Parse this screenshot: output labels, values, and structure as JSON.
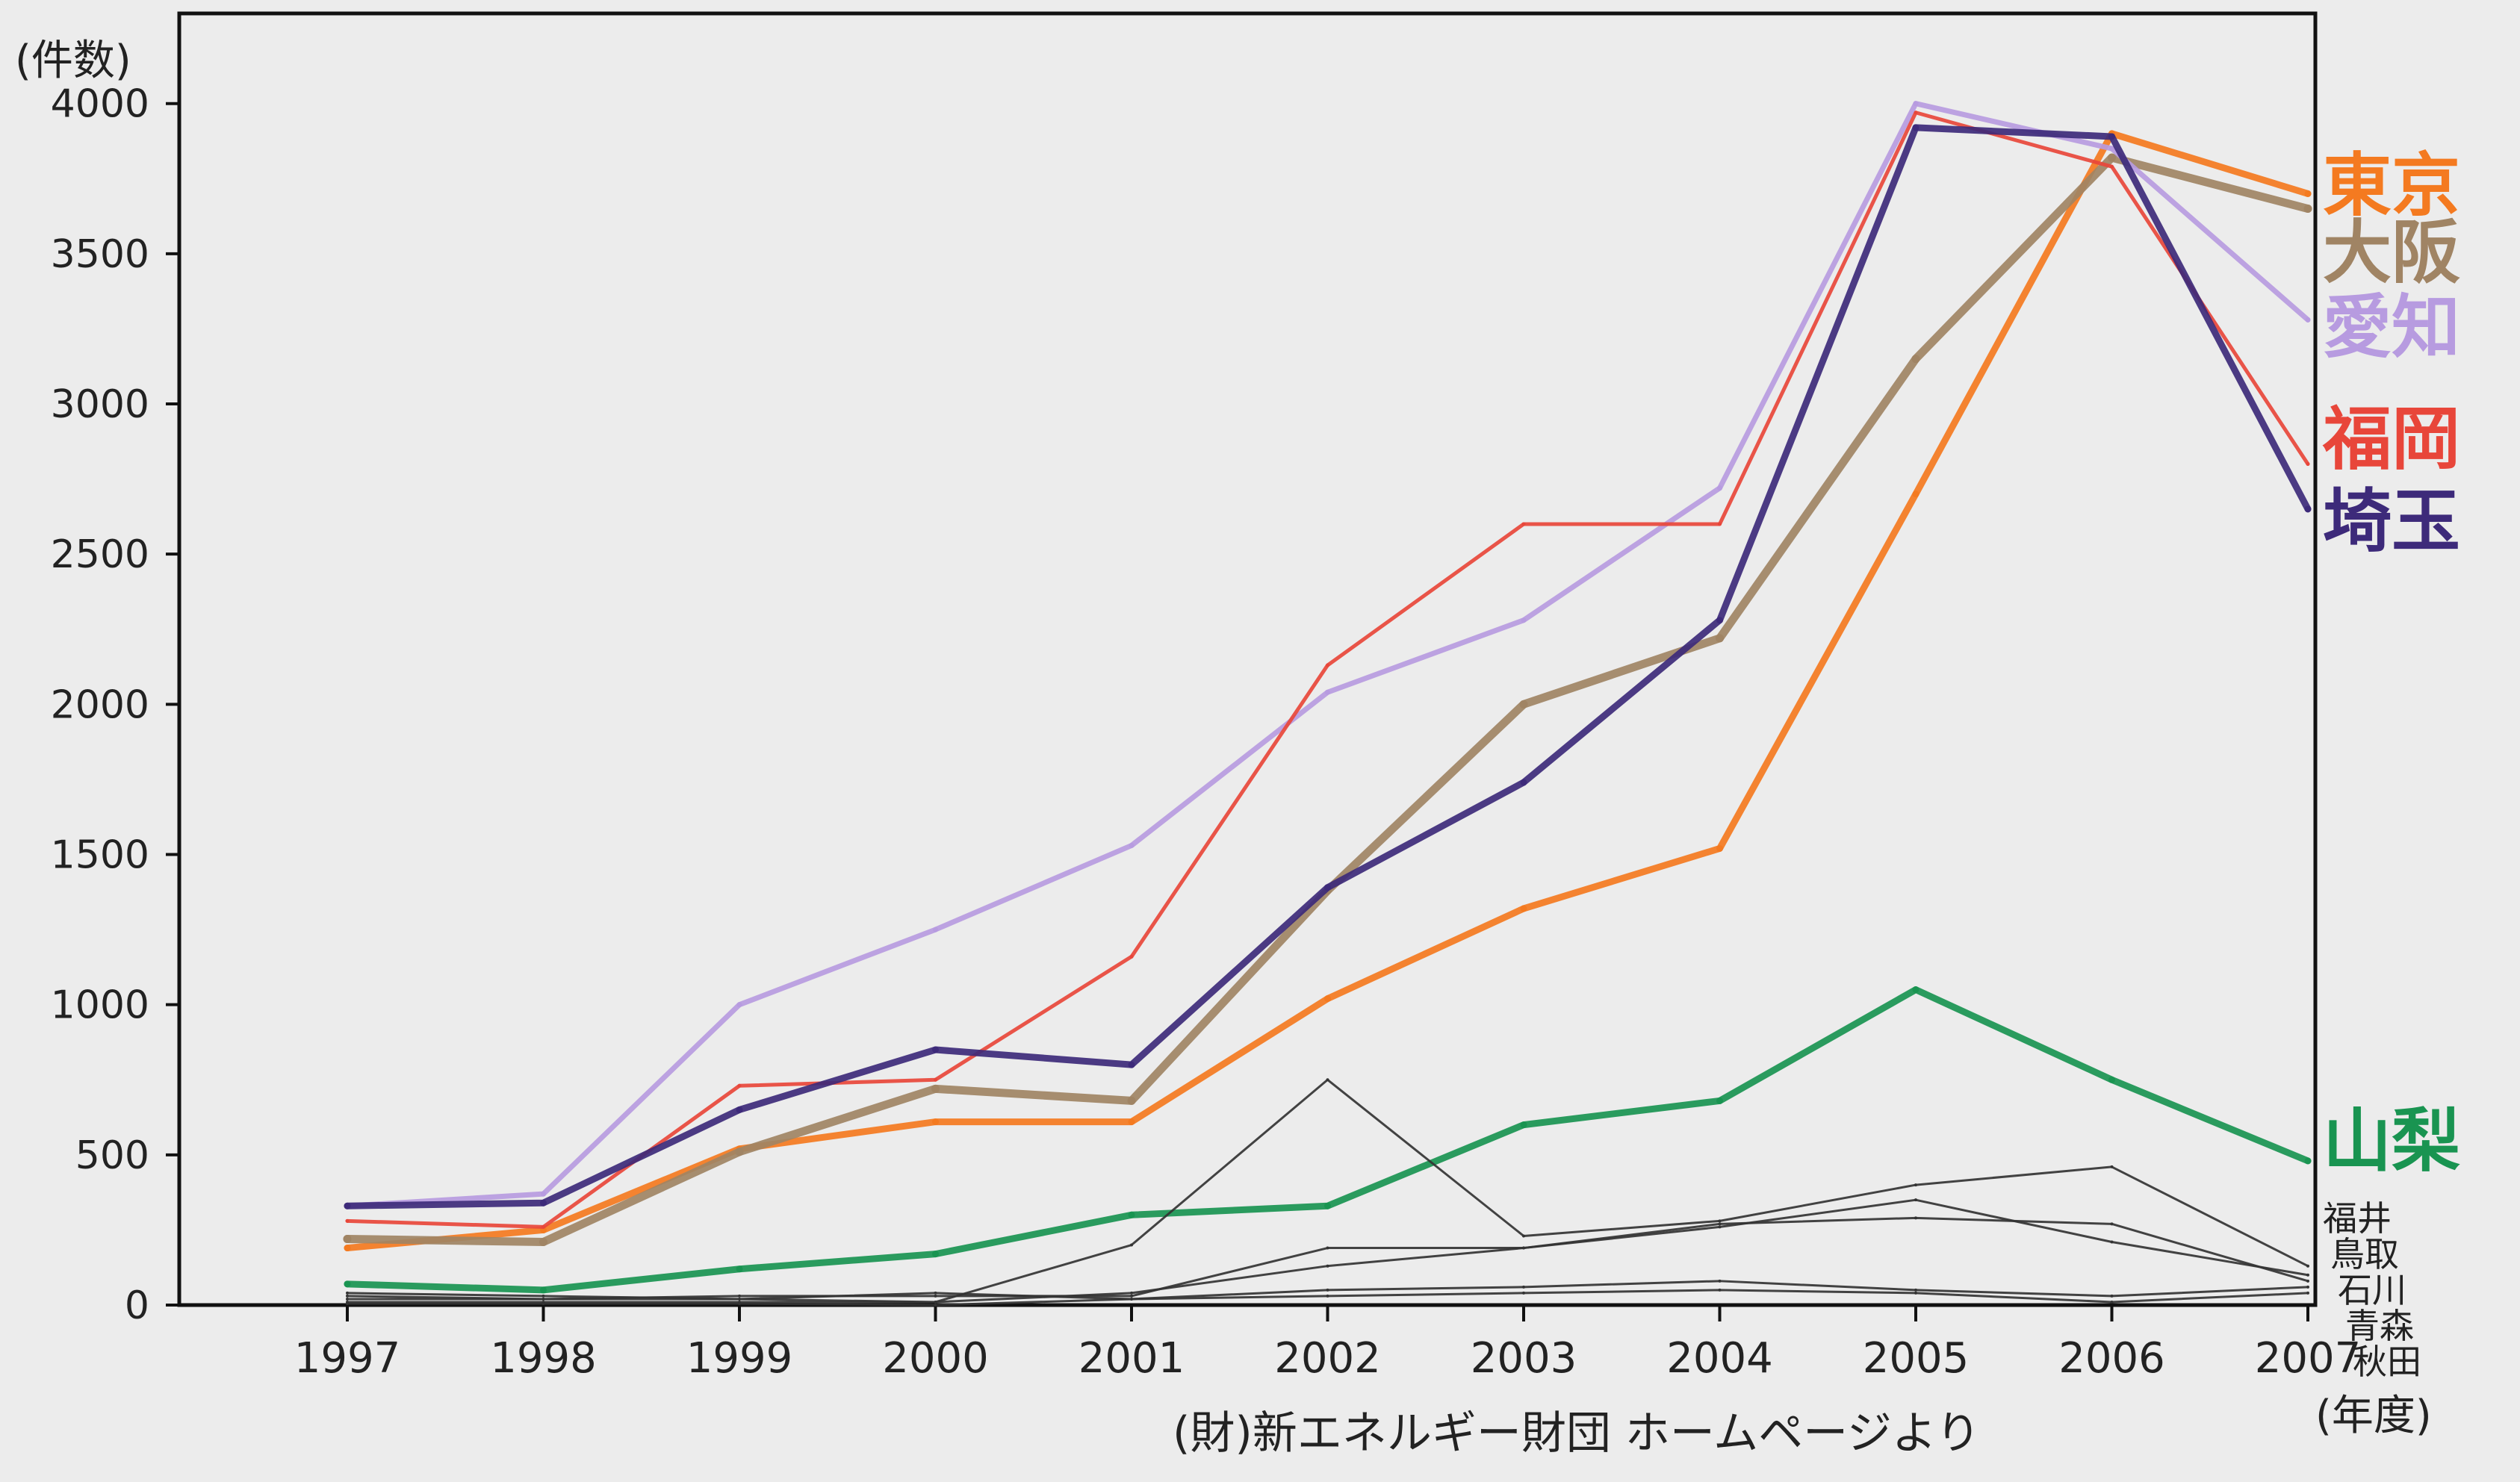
{
  "chart_data": {
    "type": "line",
    "y_unit_label": "(件数)",
    "x_unit_label": "(年度)",
    "source_note": "(財)新エネルギー財団 ホームページより",
    "x": [
      "1997",
      "1998",
      "1999",
      "2000",
      "2001",
      "2002",
      "2003",
      "2004",
      "2005",
      "2006",
      "2007"
    ],
    "y_ticks": [
      "0",
      "500",
      "1000",
      "1500",
      "2000",
      "2500",
      "3000",
      "3500",
      "4000"
    ],
    "ylim": [
      0,
      4300
    ],
    "grid": false,
    "legend_placement": "right",
    "series": [
      {
        "name": "東京",
        "color": "#f47a20",
        "width": 9,
        "values": [
          190,
          250,
          520,
          610,
          610,
          1020,
          1320,
          1520,
          2700,
          3900,
          3700
        ]
      },
      {
        "name": "大阪",
        "color": "#a08464",
        "width": 11,
        "values": [
          220,
          210,
          510,
          720,
          680,
          1380,
          2000,
          2220,
          3150,
          3820,
          3650
        ]
      },
      {
        "name": "愛知",
        "color": "#b79be0",
        "width": 7,
        "values": [
          330,
          370,
          1000,
          1250,
          1530,
          2040,
          2280,
          2720,
          4000,
          3850,
          3280
        ]
      },
      {
        "name": "福岡",
        "color": "#e8463a",
        "width": 5,
        "values": [
          280,
          260,
          730,
          750,
          1160,
          2130,
          2600,
          2600,
          3970,
          3790,
          2800
        ]
      },
      {
        "name": "埼玉",
        "color": "#3d2a7a",
        "width": 9,
        "values": [
          330,
          340,
          650,
          850,
          800,
          1390,
          1740,
          2280,
          3920,
          3890,
          2650
        ]
      },
      {
        "name": "山梨",
        "color": "#199451",
        "width": 9,
        "values": [
          70,
          50,
          120,
          170,
          300,
          330,
          600,
          680,
          1050,
          750,
          480
        ]
      },
      {
        "name": "福井",
        "color": "#333333",
        "width": 3,
        "values": [
          30,
          20,
          20,
          10,
          200,
          750,
          230,
          280,
          400,
          460,
          130
        ]
      },
      {
        "name": "鳥取",
        "color": "#333333",
        "width": 3,
        "values": [
          10,
          10,
          10,
          10,
          40,
          130,
          190,
          260,
          350,
          210,
          100
        ]
      },
      {
        "name": "石川",
        "color": "#333333",
        "width": 3,
        "values": [
          20,
          20,
          30,
          30,
          30,
          190,
          190,
          270,
          290,
          270,
          80
        ]
      },
      {
        "name": "青森",
        "color": "#333333",
        "width": 3,
        "values": [
          5,
          5,
          5,
          0,
          20,
          50,
          60,
          80,
          50,
          30,
          60
        ]
      },
      {
        "name": "秋田",
        "color": "#333333",
        "width": 3,
        "values": [
          40,
          30,
          20,
          40,
          20,
          30,
          40,
          50,
          40,
          10,
          40
        ]
      }
    ]
  }
}
